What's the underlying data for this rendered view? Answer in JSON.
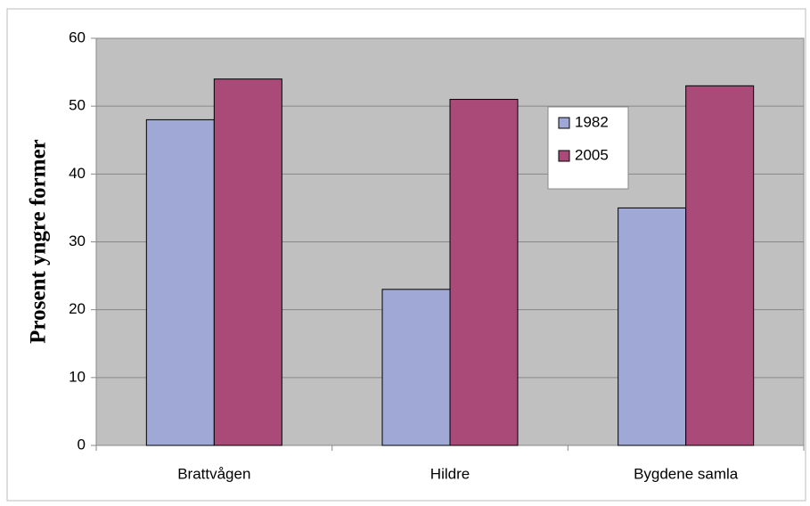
{
  "chart_data": {
    "type": "bar",
    "y_label": "Prosent yngre former",
    "categories": [
      "Brattvågen",
      "Hildre",
      "Bygdene samla"
    ],
    "series": [
      {
        "name": "1982",
        "color": "#a0a9d5",
        "values": [
          48,
          23,
          35
        ]
      },
      {
        "name": "2005",
        "color": "#aa4a78",
        "values": [
          54,
          51,
          53
        ]
      }
    ],
    "ylim": [
      0,
      60
    ],
    "yticks": [
      0,
      10,
      20,
      30,
      40,
      50,
      60
    ],
    "grid": true,
    "legend": "top-right"
  }
}
